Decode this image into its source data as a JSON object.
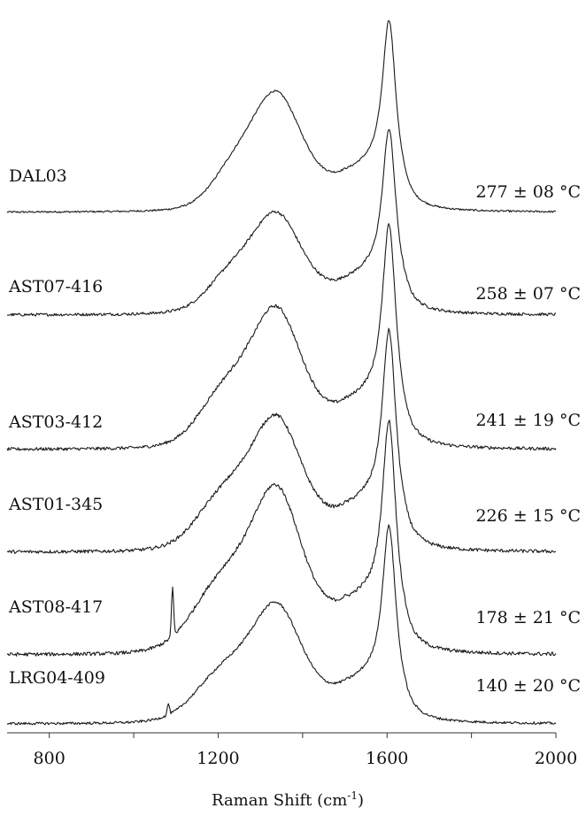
{
  "chart_data": {
    "type": "line",
    "xlabel": "Raman Shift (cm",
    "xlabel_sup": "-1",
    "xlabel_end": ")",
    "xlim": [
      700,
      2000
    ],
    "x_ticks": [
      800,
      1200,
      1600,
      2000
    ],
    "x_minor_ticks": [
      1000,
      1400,
      1800
    ],
    "y_axis_shown": false,
    "grid": false,
    "legend": "none",
    "line_color": "#1a1a1a",
    "peaks": {
      "D_band": 1340,
      "G_band": 1605
    },
    "series": [
      {
        "name": "DAL03",
        "temperature": "277 ± 08 °C",
        "start_x": 700,
        "baseline_x_onset": 1130,
        "D_height": 100,
        "G_height": 192,
        "shoulder_height": 0,
        "noise": 1.0,
        "spike_x": null,
        "spike_height": 0
      },
      {
        "name": "AST07-416",
        "temperature": "258 ± 07 °C",
        "start_x": 700,
        "baseline_x_onset": 1110,
        "D_height": 85,
        "G_height": 187,
        "shoulder_height": 0,
        "noise": 1.6,
        "spike_x": null,
        "spike_height": 0
      },
      {
        "name": "AST03-412",
        "temperature": "241 ± 19 °C",
        "start_x": 700,
        "baseline_x_onset": 1080,
        "D_height": 118,
        "G_height": 225,
        "shoulder_height": 0,
        "noise": 1.8,
        "spike_x": null,
        "spike_height": 0
      },
      {
        "name": "AST01-345",
        "temperature": "226 ± 15 °C",
        "start_x": 700,
        "baseline_x_onset": 1070,
        "D_height": 113,
        "G_height": 222,
        "shoulder_height": 0,
        "noise": 1.9,
        "spike_x": null,
        "spike_height": 0
      },
      {
        "name": "AST08-417",
        "temperature": "178 ± 21 °C",
        "start_x": 700,
        "baseline_x_onset": 1050,
        "D_height": 140,
        "G_height": 232,
        "shoulder_height": 0,
        "noise": 2.0,
        "spike_x": 1092,
        "spike_height": 55
      },
      {
        "name": "LRG04-409",
        "temperature": "140 ± 20 °C",
        "start_x": 700,
        "baseline_x_onset": 1060,
        "D_height": 100,
        "G_height": 198,
        "shoulder_height": 0,
        "noise": 1.4,
        "spike_x": 1082,
        "spike_height": 13
      }
    ]
  }
}
